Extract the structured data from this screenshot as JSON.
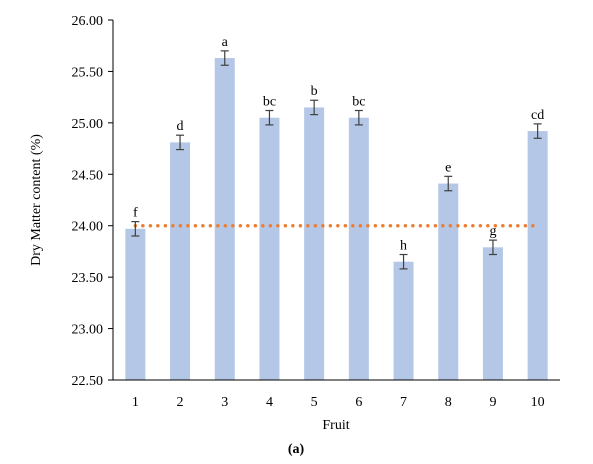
{
  "chart_data": {
    "type": "bar",
    "categories": [
      "1",
      "2",
      "3",
      "4",
      "5",
      "6",
      "7",
      "8",
      "9",
      "10"
    ],
    "values": [
      23.97,
      24.81,
      25.63,
      25.05,
      25.15,
      25.05,
      23.65,
      24.41,
      23.79,
      24.92
    ],
    "errors": [
      0.07,
      0.07,
      0.07,
      0.07,
      0.07,
      0.07,
      0.07,
      0.07,
      0.07,
      0.07
    ],
    "letters": [
      "f",
      "d",
      "a",
      "bc",
      "b",
      "bc",
      "h",
      "e",
      "g",
      "cd"
    ],
    "reference_line": 24.0,
    "xlabel": "Fruit",
    "ylabel": "Dry Matter content (%)",
    "ylim": [
      22.5,
      26.0
    ],
    "yticks": [
      "22.50",
      "23.00",
      "23.50",
      "24.00",
      "24.50",
      "25.00",
      "25.50",
      "26.00"
    ],
    "panel_label": "(a)",
    "grid": false,
    "colors": {
      "bar": "#b4c7e7",
      "reference_line": "#ed7d31",
      "error_bar": "#404040",
      "axis": "#000000"
    }
  }
}
